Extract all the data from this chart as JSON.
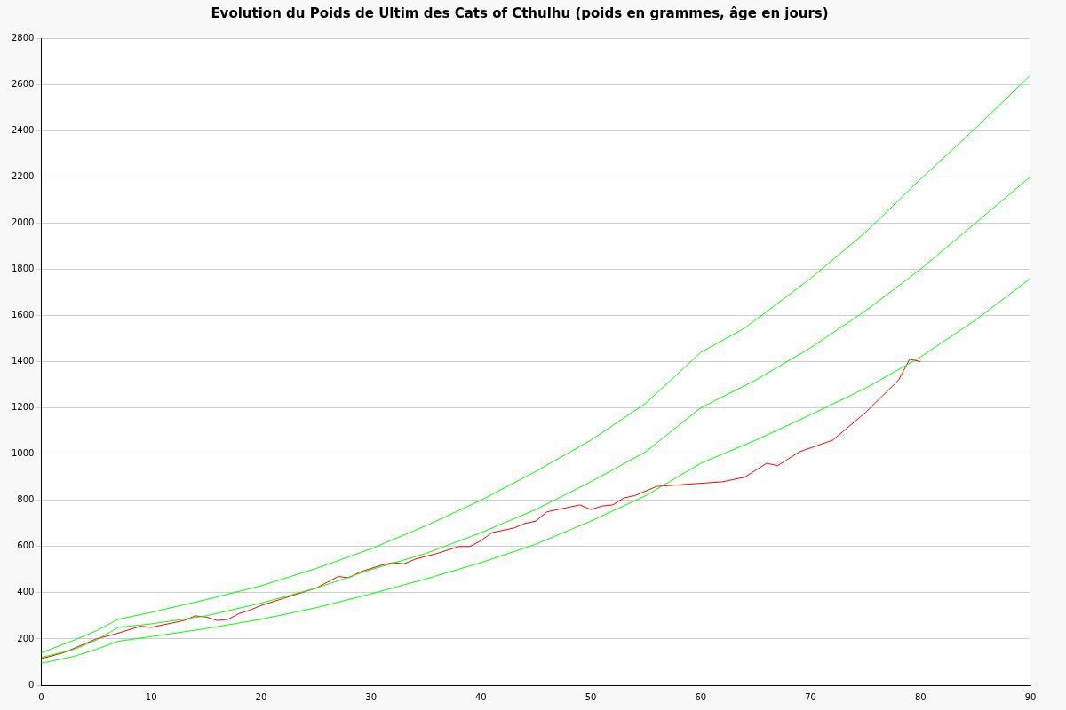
{
  "chart_data": {
    "type": "line",
    "title": "Evolution du Poids de Ultim des Cats of Cthulhu (poids en grammes, âge en jours)",
    "xlim": [
      0,
      90
    ],
    "xticks": [
      0,
      10,
      20,
      30,
      40,
      50,
      60,
      70,
      80,
      90
    ],
    "ylim": [
      0,
      2800
    ],
    "yticks": [
      0,
      200,
      400,
      600,
      800,
      1000,
      1200,
      1400,
      1600,
      1800,
      2000,
      2200,
      2400,
      2600,
      2800
    ],
    "grid": "y",
    "legend": false,
    "marker": "none",
    "line_style": "solid",
    "series": [
      {
        "color": "#00ff00",
        "x": [
          0,
          3,
          5,
          7,
          10,
          15,
          20,
          25,
          30,
          35,
          40,
          45,
          50,
          55,
          60,
          64,
          70,
          75,
          80,
          85,
          90
        ],
        "values": [
          140,
          195,
          235,
          285,
          315,
          370,
          430,
          505,
          590,
          690,
          800,
          925,
          1060,
          1220,
          1440,
          1545,
          1760,
          1960,
          2190,
          2410,
          2640
        ]
      },
      {
        "color": "#00ff00",
        "x": [
          0,
          3,
          5,
          7,
          10,
          15,
          20,
          25,
          30,
          35,
          40,
          45,
          50,
          55,
          60,
          65,
          70,
          75,
          80,
          85,
          90
        ],
        "values": [
          120,
          155,
          195,
          250,
          265,
          300,
          355,
          420,
          500,
          570,
          660,
          760,
          880,
          1010,
          1200,
          1320,
          1460,
          1620,
          1800,
          2000,
          2200
        ]
      },
      {
        "color": "#00ff00",
        "x": [
          0,
          3,
          5,
          7,
          10,
          15,
          20,
          25,
          30,
          35,
          40,
          45,
          50,
          55,
          60,
          65,
          70,
          75,
          80,
          85,
          90
        ],
        "values": [
          95,
          125,
          155,
          190,
          210,
          245,
          285,
          335,
          395,
          460,
          530,
          610,
          710,
          820,
          960,
          1060,
          1170,
          1285,
          1420,
          1580,
          1760
        ]
      },
      {
        "color": "#ff0000",
        "x": [
          0,
          2,
          4,
          5,
          7,
          9,
          10,
          12,
          13,
          14,
          15,
          16,
          17,
          18,
          19,
          20,
          22,
          24,
          25,
          26,
          27,
          28,
          29,
          31,
          32,
          33,
          34,
          36,
          37,
          38,
          39,
          40,
          41,
          43,
          44,
          45,
          46,
          48,
          49,
          50,
          51,
          52,
          53,
          54,
          56,
          62,
          64,
          66,
          67,
          69,
          72,
          75,
          78,
          79,
          80
        ],
        "values": [
          115,
          140,
          180,
          200,
          225,
          255,
          250,
          270,
          280,
          300,
          295,
          280,
          285,
          310,
          325,
          345,
          375,
          405,
          420,
          445,
          470,
          465,
          490,
          520,
          530,
          525,
          545,
          570,
          585,
          600,
          600,
          625,
          660,
          680,
          700,
          710,
          750,
          770,
          780,
          760,
          775,
          780,
          810,
          820,
          860,
          880,
          900,
          960,
          950,
          1010,
          1060,
          1180,
          1320,
          1410,
          1400
        ]
      }
    ]
  }
}
